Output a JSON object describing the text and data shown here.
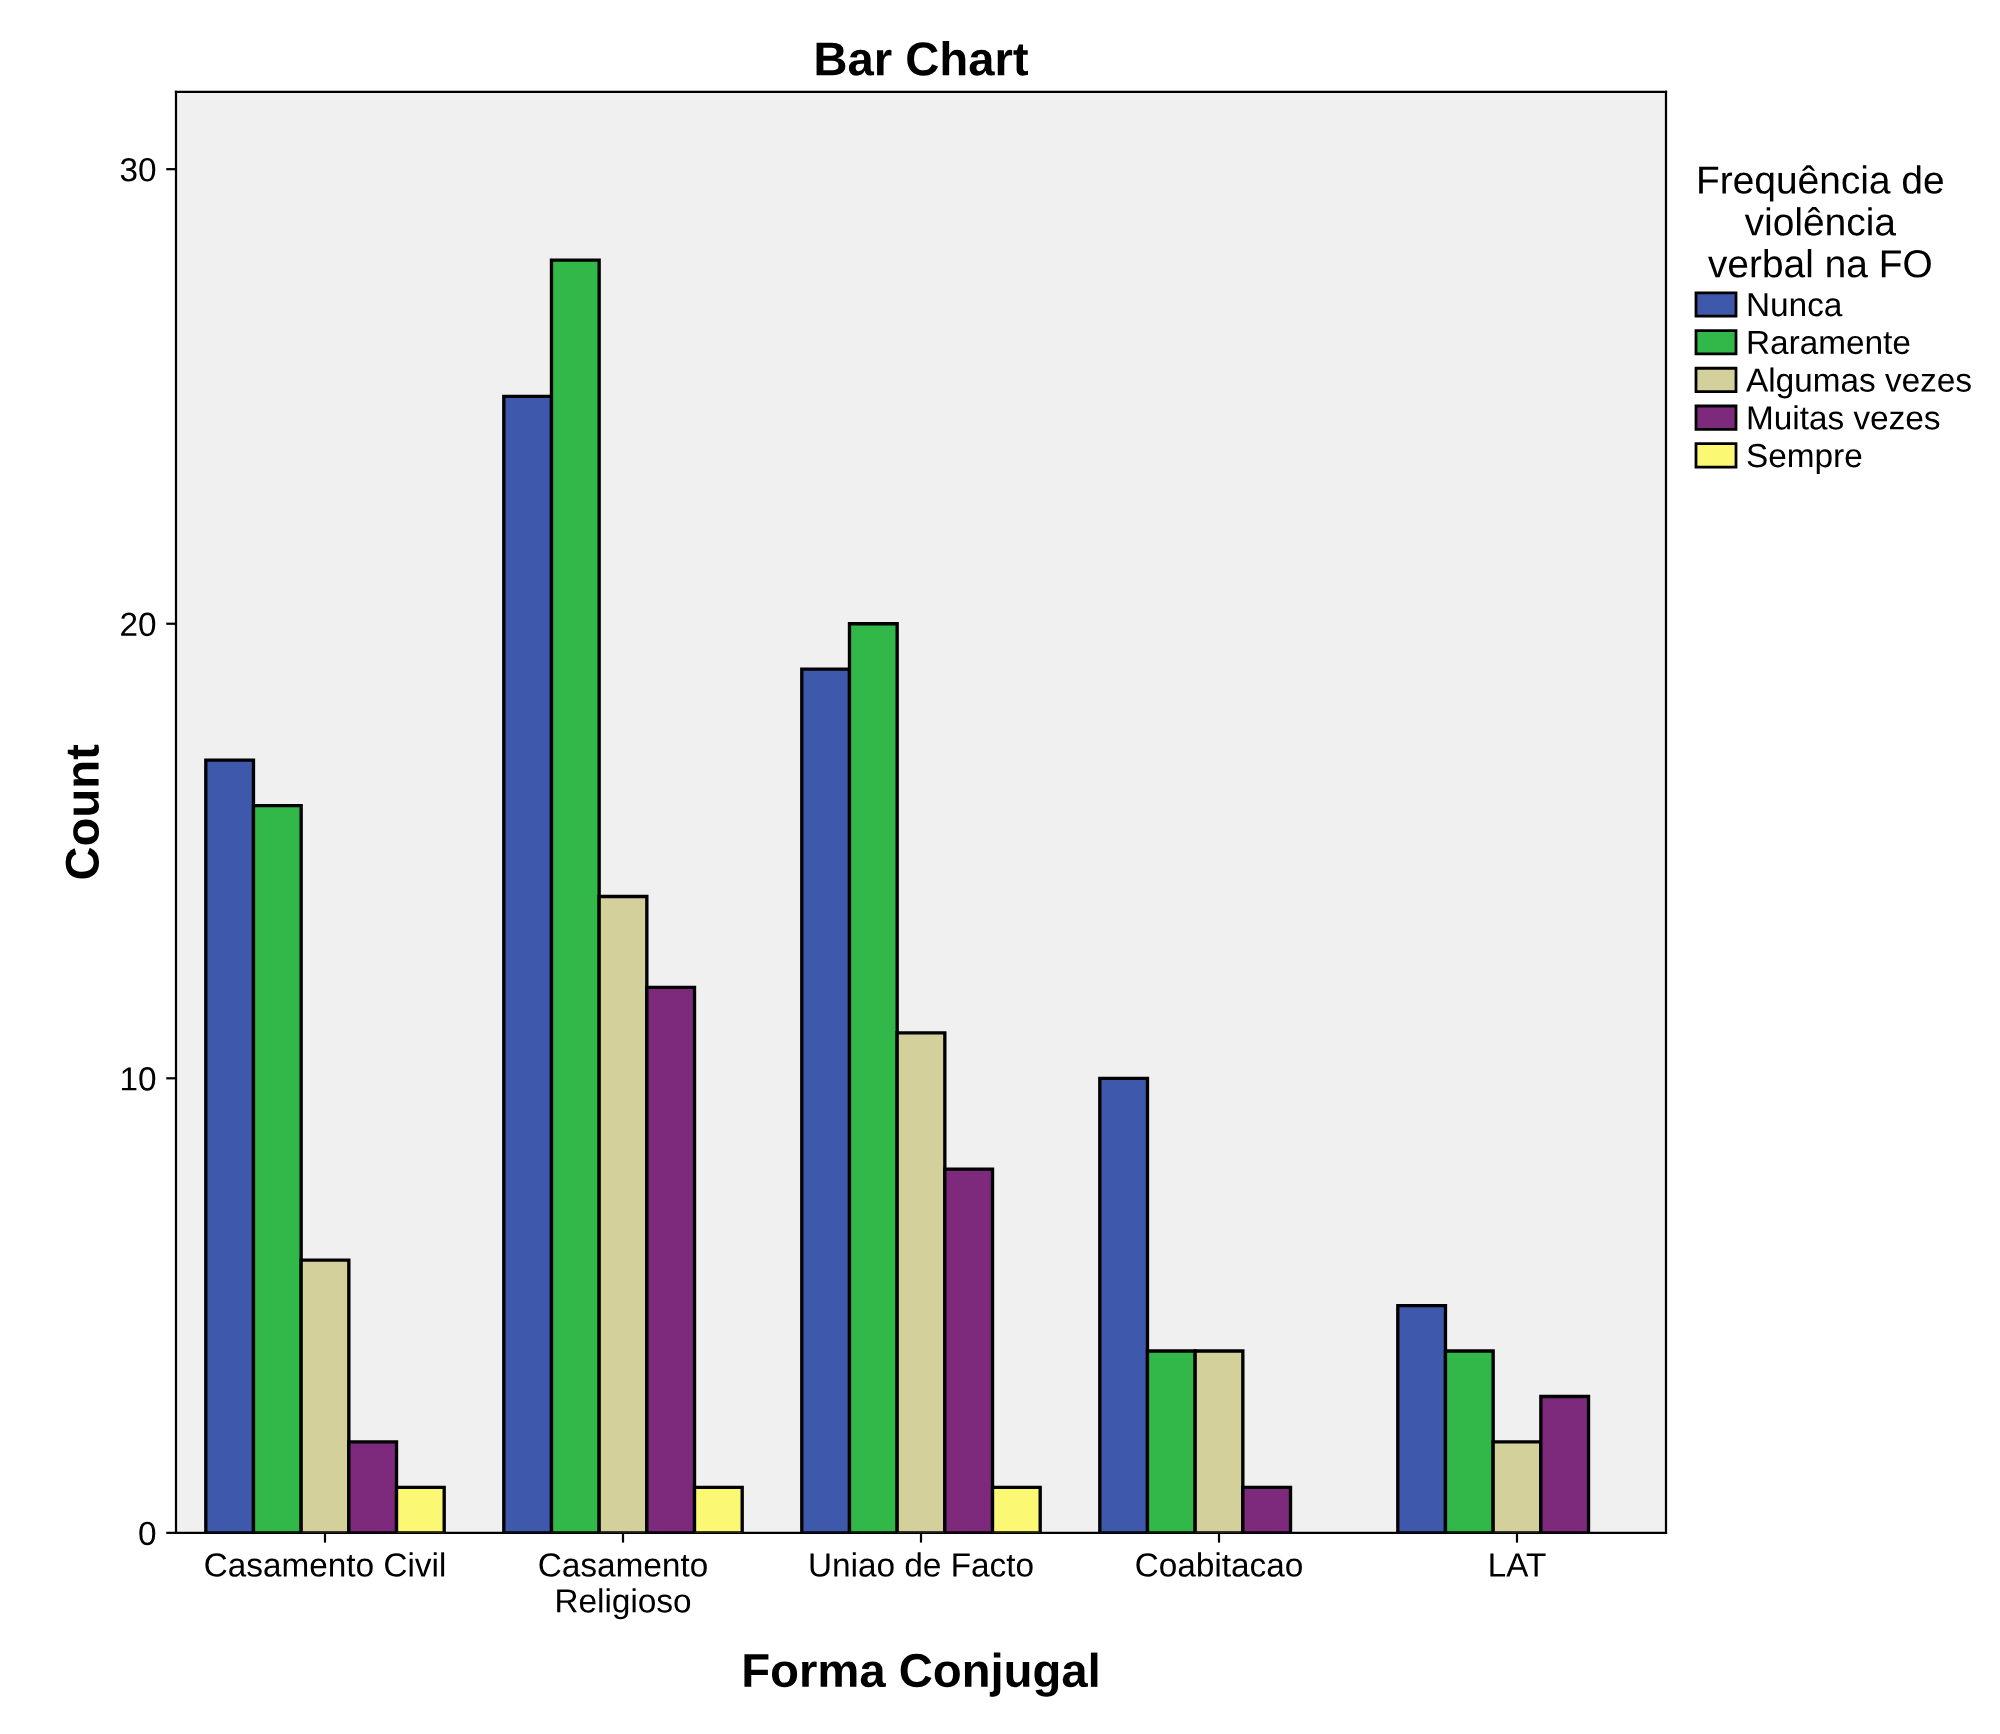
{
  "chart_data": {
    "type": "bar",
    "title": "Bar Chart",
    "xlabel": "Forma Conjugal",
    "ylabel": "Count",
    "legend_title": "Frequência de\nviolência\nverbal na FO",
    "categories": [
      "Casamento Civil",
      "Casamento\nReligioso",
      "Uniao de Facto",
      "Coabitacao",
      "LAT"
    ],
    "series": [
      {
        "name": "Nunca",
        "color": "#3e58ac",
        "values": [
          17,
          25,
          19,
          10,
          5
        ]
      },
      {
        "name": "Raramente",
        "color": "#32b848",
        "values": [
          16,
          28,
          20,
          4,
          4
        ]
      },
      {
        "name": "Algumas vezes",
        "color": "#d4d09b",
        "values": [
          6,
          14,
          11,
          4,
          2
        ]
      },
      {
        "name": "Muitas vezes",
        "color": "#7d2a7d",
        "values": [
          2,
          12,
          8,
          1,
          3
        ]
      },
      {
        "name": "Sempre",
        "color": "#fbf974",
        "values": [
          1,
          1,
          1,
          null,
          null
        ]
      }
    ],
    "ylim": [
      0,
      31.7
    ],
    "yticks": [
      0,
      10,
      20,
      30
    ],
    "grid": false,
    "legend": "right"
  }
}
